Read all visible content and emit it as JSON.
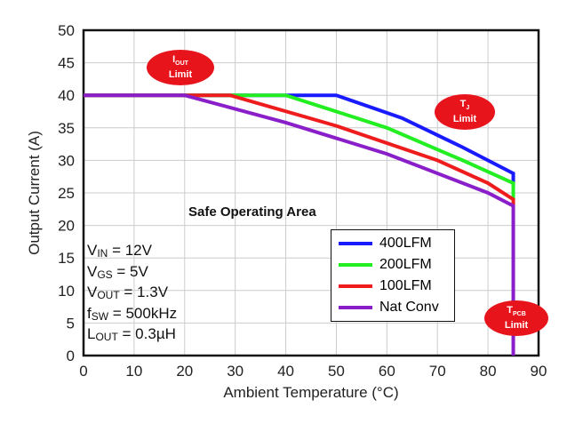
{
  "chart_data": {
    "type": "line",
    "xlabel": "Ambient Temperature (°C)",
    "ylabel": "Output Current (A)",
    "xlim": [
      0,
      90
    ],
    "ylim": [
      0,
      50
    ],
    "xticks": [
      0,
      10,
      20,
      30,
      40,
      50,
      60,
      70,
      80,
      90
    ],
    "yticks": [
      0,
      5,
      10,
      15,
      20,
      25,
      30,
      35,
      40,
      45,
      50
    ],
    "grid": true,
    "legend_placement": "bottom-right",
    "series": [
      {
        "name": "400LFM",
        "color": "#1a1aff",
        "points": [
          [
            0,
            40
          ],
          [
            50,
            40
          ],
          [
            63,
            36.5
          ],
          [
            75,
            32
          ],
          [
            85,
            28
          ],
          [
            85,
            26
          ]
        ]
      },
      {
        "name": "200LFM",
        "color": "#22ee22",
        "points": [
          [
            0,
            40
          ],
          [
            40,
            40
          ],
          [
            60,
            35
          ],
          [
            75,
            30
          ],
          [
            85,
            26.5
          ],
          [
            85,
            24
          ]
        ]
      },
      {
        "name": "100LFM",
        "color": "#ee1c1c",
        "points": [
          [
            0,
            40
          ],
          [
            29,
            40
          ],
          [
            50,
            35.3
          ],
          [
            70,
            30
          ],
          [
            80,
            26.5
          ],
          [
            85,
            24
          ],
          [
            85,
            23
          ]
        ]
      },
      {
        "name": "Nat Conv",
        "color": "#8a1fc9",
        "points": [
          [
            0,
            40
          ],
          [
            20,
            40
          ],
          [
            40,
            35.8
          ],
          [
            60,
            31
          ],
          [
            80,
            25
          ],
          [
            85,
            23
          ],
          [
            85,
            0
          ]
        ]
      }
    ],
    "annotations": {
      "soa": "Safe Operating Area",
      "iout_limit": {
        "main": "I",
        "sub": "OUT",
        "label": "Limit"
      },
      "tj_limit": {
        "main": "T",
        "sub": "J",
        "label": "Limit"
      },
      "tpcb_limit": {
        "main": "T",
        "sub": "PCB",
        "label": "Limit"
      }
    },
    "conditions": [
      {
        "main": "V",
        "sub": "IN",
        "rest": " = 12V"
      },
      {
        "main": "V",
        "sub": "GS",
        "rest": " = 5V"
      },
      {
        "main": "V",
        "sub": "OUT",
        "rest": " = 1.3V"
      },
      {
        "main": "f",
        "sub": "SW",
        "rest": " = 500kHz"
      },
      {
        "main": "L",
        "sub": "OUT",
        "rest": " = 0.3µH"
      }
    ]
  }
}
